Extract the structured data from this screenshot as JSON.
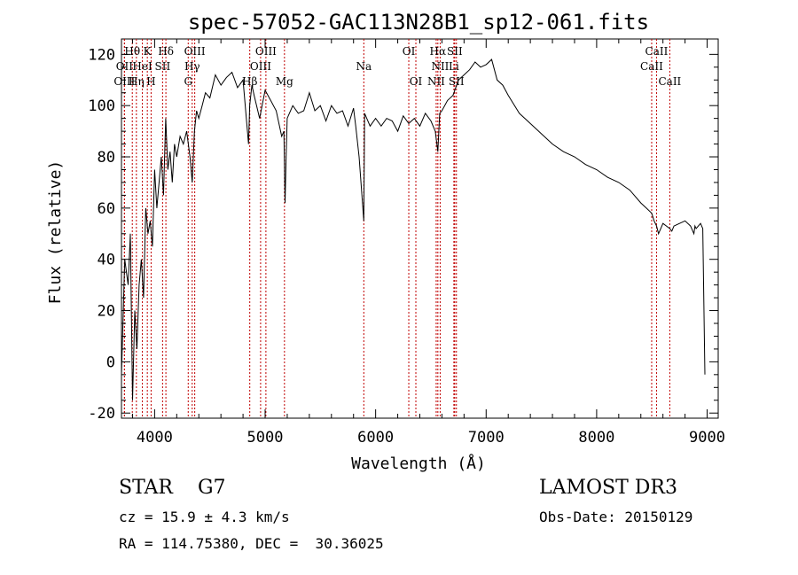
{
  "chart_data": {
    "type": "line",
    "title": "spec-57052-GAC113N28B1_sp12-061.fits",
    "xlabel": "Wavelength (Å)",
    "ylabel": "Flux (relative)",
    "xlim": [
      3700,
      9100
    ],
    "ylim": [
      -22,
      126
    ],
    "x_ticks": [
      4000,
      5000,
      6000,
      7000,
      8000,
      9000
    ],
    "y_ticks": [
      -20,
      0,
      20,
      40,
      60,
      80,
      100,
      120
    ],
    "grid": false,
    "series": [
      {
        "x": [
          3700,
          3730,
          3760,
          3780,
          3800,
          3820,
          3840,
          3860,
          3880,
          3900,
          3920,
          3940,
          3960,
          3980,
          4000,
          4020,
          4040,
          4060,
          4080,
          4100,
          4120,
          4140,
          4160,
          4180,
          4200,
          4230,
          4260,
          4290,
          4320,
          4340,
          4360,
          4380,
          4400,
          4430,
          4460,
          4500,
          4550,
          4600,
          4650,
          4700,
          4750,
          4800,
          4850,
          4860,
          4880,
          4900,
          4950,
          5000,
          5050,
          5100,
          5150,
          5170,
          5180,
          5190,
          5200,
          5250,
          5300,
          5350,
          5400,
          5450,
          5500,
          5550,
          5600,
          5650,
          5700,
          5750,
          5800,
          5820,
          5850,
          5893,
          5900,
          5950,
          6000,
          6050,
          6100,
          6150,
          6200,
          6250,
          6300,
          6350,
          6400,
          6450,
          6500,
          6540,
          6563,
          6580,
          6600,
          6650,
          6700,
          6750,
          6800,
          6850,
          6900,
          6950,
          7000,
          7050,
          7100,
          7150,
          7200,
          7300,
          7400,
          7500,
          7600,
          7700,
          7800,
          7900,
          8000,
          8100,
          8200,
          8300,
          8400,
          8450,
          8498,
          8520,
          8542,
          8560,
          8600,
          8662,
          8680,
          8700,
          8750,
          8800,
          8850,
          8880,
          8890,
          8900,
          8920,
          8940,
          8960,
          8980
        ],
        "y": [
          -5,
          40,
          30,
          50,
          -15,
          20,
          5,
          30,
          40,
          25,
          60,
          50,
          55,
          45,
          75,
          60,
          70,
          80,
          65,
          95,
          75,
          82,
          70,
          85,
          80,
          88,
          85,
          90,
          80,
          70,
          90,
          98,
          95,
          100,
          105,
          103,
          112,
          108,
          111,
          113,
          107,
          110,
          85,
          100,
          108,
          104,
          95,
          106,
          102,
          98,
          88,
          90,
          62,
          80,
          95,
          100,
          97,
          98,
          105,
          98,
          100,
          94,
          100,
          97,
          98,
          92,
          99,
          92,
          80,
          55,
          97,
          92,
          95,
          92,
          95,
          94,
          90,
          96,
          93,
          95,
          92,
          97,
          94,
          90,
          82,
          97,
          98,
          102,
          104,
          110,
          112,
          114,
          117,
          115,
          116,
          118,
          110,
          108,
          104,
          97,
          93,
          89,
          85,
          82,
          80,
          77,
          75,
          72,
          70,
          67,
          62,
          60,
          58,
          55,
          53,
          50,
          54,
          52,
          51,
          53,
          54,
          55,
          53,
          50,
          53,
          52,
          53,
          54,
          52,
          -5
        ]
      }
    ],
    "lines": [
      {
        "name": "Hθ",
        "x": 3798,
        "row": 1
      },
      {
        "name": "OII",
        "x": 3727,
        "row": 2
      },
      {
        "name": "OIII",
        "x": 3727,
        "row": 3
      },
      {
        "name": "K",
        "x": 3934,
        "row": 1
      },
      {
        "name": "HeI",
        "x": 3889,
        "row": 2
      },
      {
        "name": "Hη",
        "x": 3835,
        "row": 3
      },
      {
        "name": "SII",
        "x": 4072,
        "row": 2
      },
      {
        "name": "H",
        "x": 3968,
        "row": 3
      },
      {
        "name": "Hδ",
        "x": 4102,
        "row": 1
      },
      {
        "name": "OIII",
        "x": 4363,
        "row": 1
      },
      {
        "name": "Hγ",
        "x": 4340,
        "row": 2
      },
      {
        "name": "G",
        "x": 4304,
        "row": 3
      },
      {
        "name": "OIII",
        "x": 5007,
        "row": 1
      },
      {
        "name": "OIII",
        "x": 4959,
        "row": 2
      },
      {
        "name": "Hβ",
        "x": 4861,
        "row": 3
      },
      {
        "name": "Mg",
        "x": 5175,
        "row": 3
      },
      {
        "name": "Na",
        "x": 5893,
        "row": 2
      },
      {
        "name": "OI",
        "x": 6300,
        "row": 1
      },
      {
        "name": "OI",
        "x": 6364,
        "row": 3
      },
      {
        "name": "Hα",
        "x": 6563,
        "row": 1
      },
      {
        "name": "SII",
        "x": 6716,
        "row": 1
      },
      {
        "name": "NII",
        "x": 6584,
        "row": 2
      },
      {
        "name": "Li",
        "x": 6708,
        "row": 2
      },
      {
        "name": "NII",
        "x": 6548,
        "row": 3
      },
      {
        "name": "SII",
        "x": 6731,
        "row": 3
      },
      {
        "name": "CaII",
        "x": 8542,
        "row": 1
      },
      {
        "name": "CaII",
        "x": 8498,
        "row": 2
      },
      {
        "name": "CaII",
        "x": 8662,
        "row": 3
      }
    ]
  },
  "info": {
    "class_line": "STAR    G7",
    "survey": "LAMOST DR3",
    "cz": "cz = 15.9 ± 4.3 km/s",
    "obs_date": "Obs-Date: 20150129",
    "coords": "RA = 114.75380, DEC =  30.36025"
  }
}
